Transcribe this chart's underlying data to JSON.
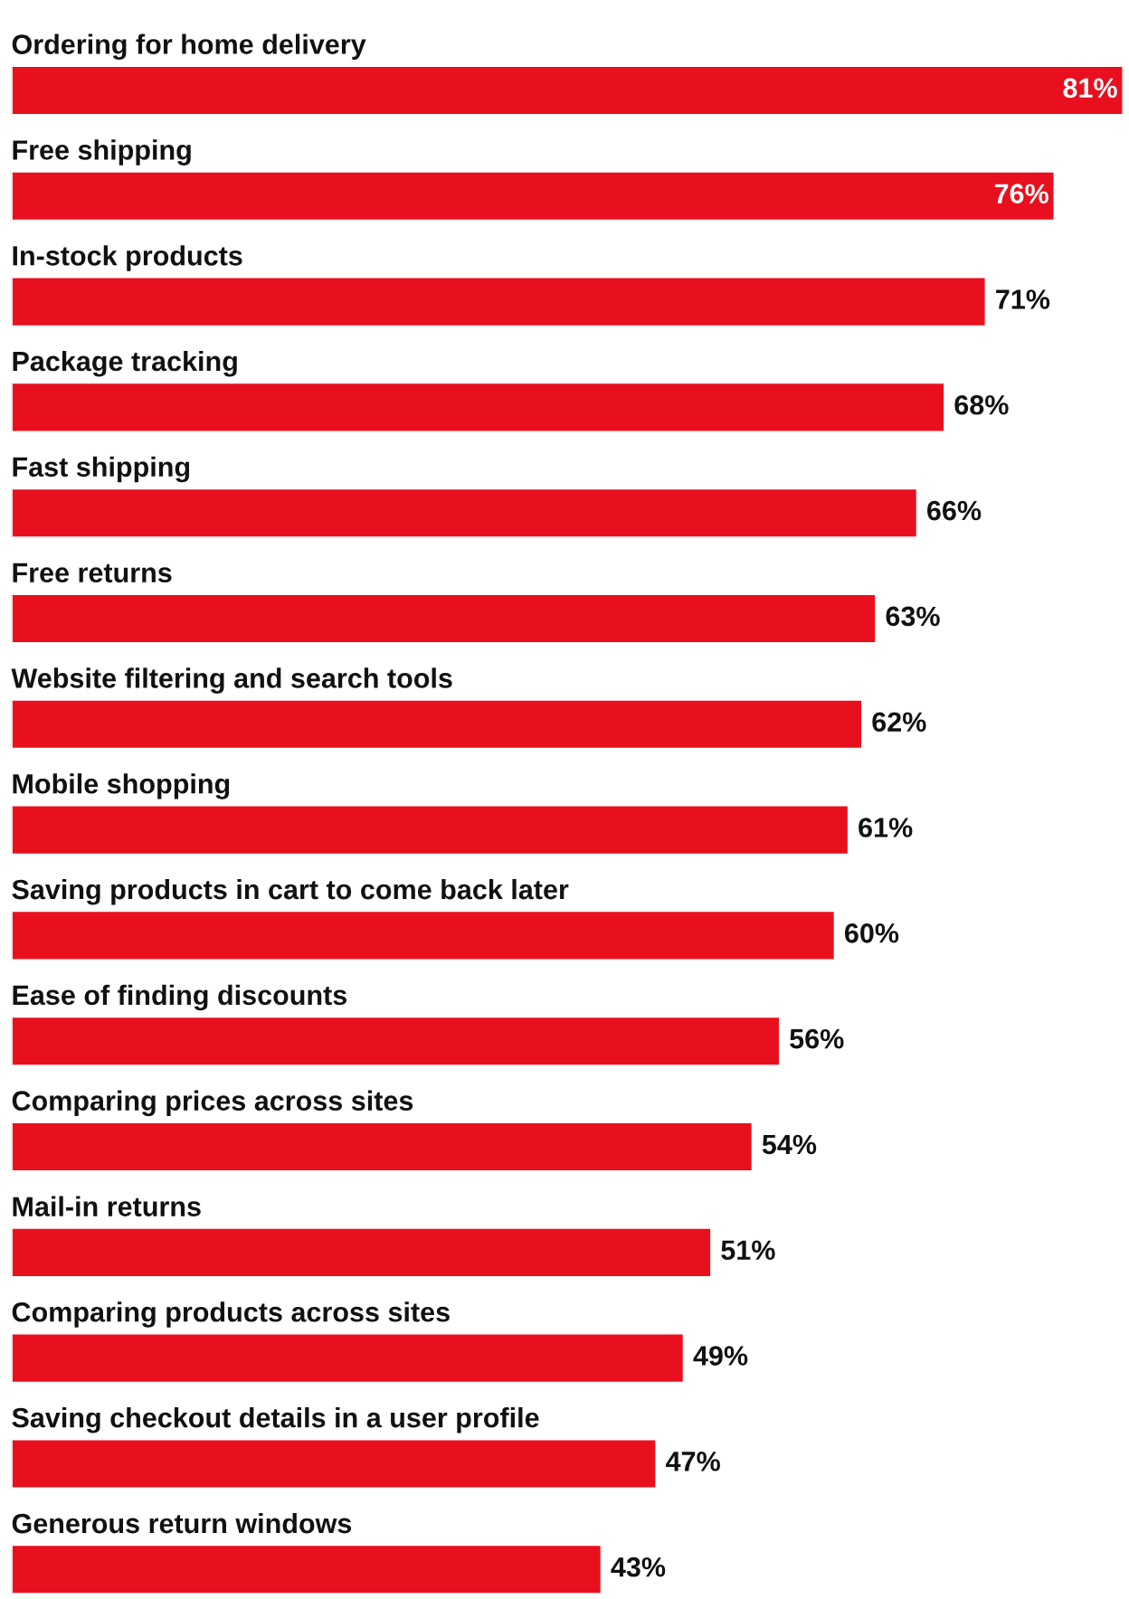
{
  "chart_data": {
    "type": "bar",
    "orientation": "horizontal",
    "color": "#e8101e",
    "data_labels": true,
    "xlim": [
      0,
      81
    ],
    "categories": [
      "Ordering for home delivery",
      "Free shipping",
      "In-stock products",
      "Package tracking",
      "Fast shipping",
      "Free returns",
      "Website filtering and search tools",
      "Mobile shopping",
      "Saving products in cart to come back later",
      "Ease of finding discounts",
      "Comparing prices across sites",
      "Mail-in returns",
      "Comparing products across sites",
      "Saving checkout details in a user profile",
      "Generous return windows"
    ],
    "values": [
      81,
      76,
      71,
      68,
      66,
      63,
      62,
      61,
      60,
      56,
      54,
      51,
      49,
      47,
      43
    ],
    "value_labels": [
      "81%",
      "76%",
      "71%",
      "68%",
      "66%",
      "63%",
      "62%",
      "61%",
      "60%",
      "56%",
      "54%",
      "51%",
      "49%",
      "47%",
      "43%"
    ]
  }
}
